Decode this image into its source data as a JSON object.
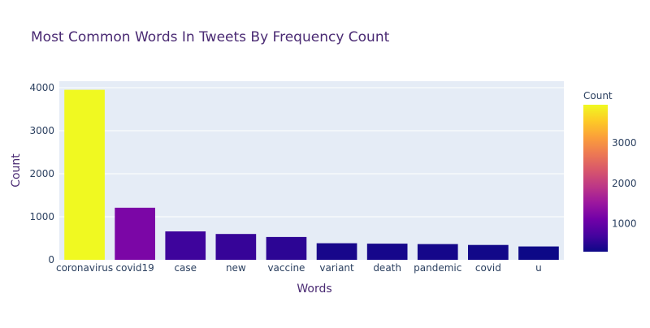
{
  "chart_data": {
    "type": "bar",
    "title": "Most Common Words In Tweets By Frequency Count",
    "xlabel": "Words",
    "ylabel": "Count",
    "categories": [
      "coronavirus",
      "covid19",
      "case",
      "new",
      "vaccine",
      "variant",
      "death",
      "pandemic",
      "covid",
      "u"
    ],
    "values": [
      3950,
      1210,
      660,
      600,
      530,
      385,
      375,
      365,
      345,
      310
    ],
    "ylim": [
      0,
      4150
    ],
    "yticks": [
      0,
      1000,
      2000,
      3000,
      4000
    ],
    "grid": true,
    "colorbar": {
      "title": "Count",
      "ticks": [
        1000,
        2000,
        3000
      ],
      "range": [
        310,
        3950
      ],
      "colorscale": [
        "#0d0887",
        "#46039f",
        "#7201a8",
        "#9c179e",
        "#bd3786",
        "#d8576b",
        "#ed7953",
        "#fb9f3a",
        "#fdca26",
        "#f0f921"
      ]
    },
    "colors": {
      "plot_bg": "#e5ecf6",
      "grid": "#ffffff",
      "text": "#2a3f5f",
      "title": "#4a2a73"
    }
  }
}
